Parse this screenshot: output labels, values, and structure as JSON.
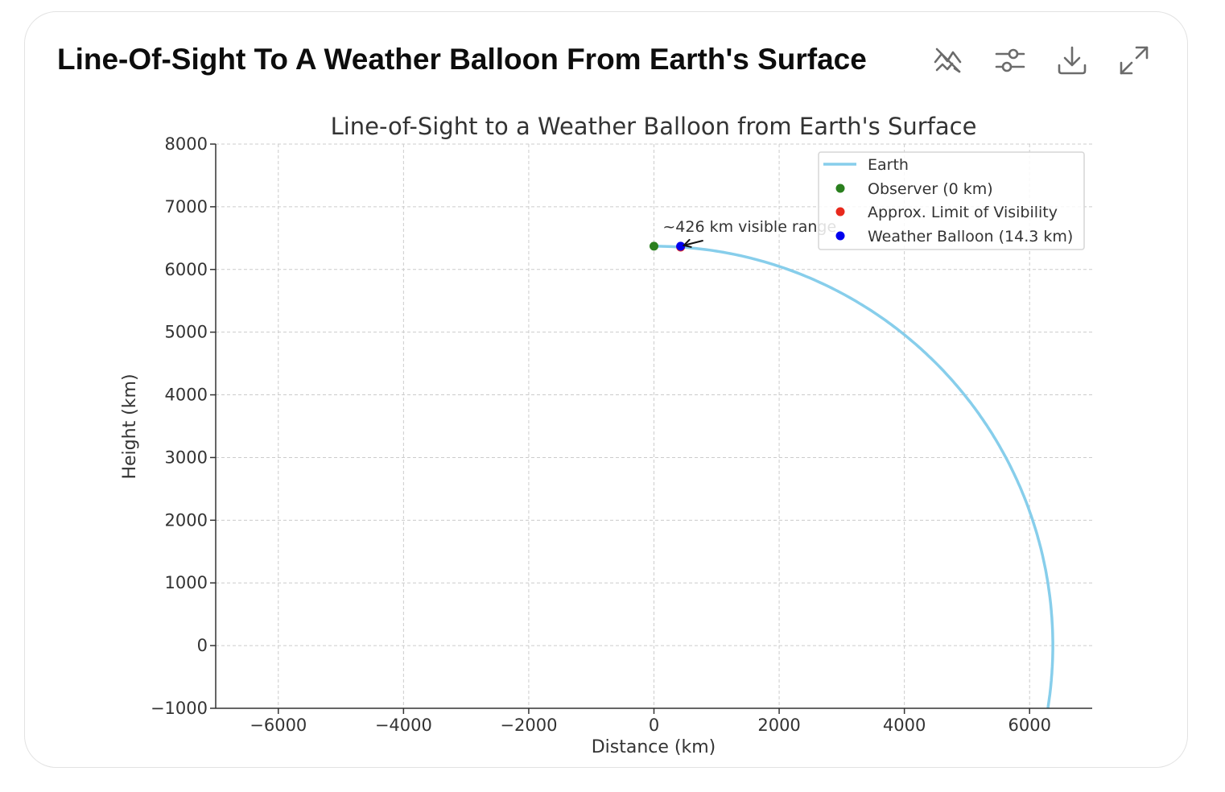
{
  "card": {
    "title": "Line-Of-Sight To A Weather Balloon From Earth's Surface"
  },
  "toolbar": {
    "buttons": [
      {
        "icon": "interactive-chart-off-icon",
        "label": "Switch to static chart"
      },
      {
        "icon": "sliders-icon",
        "label": "Customize chart"
      },
      {
        "icon": "download-icon",
        "label": "Download"
      },
      {
        "icon": "expand-icon",
        "label": "Expand chart"
      }
    ]
  },
  "colors": {
    "earth": "#87CEEB",
    "observer": "#2a7f1e",
    "limit": "#e8291c",
    "balloon": "#0000ee",
    "axis": "#333333",
    "grid": "#cccccc"
  },
  "chart_data": {
    "type": "line",
    "title": "Line-of-Sight to a Weather Balloon from Earth's Surface",
    "xlabel": "Distance (km)",
    "ylabel": "Height (km)",
    "xlim": [
      -7000,
      7000
    ],
    "ylim": [
      -1000,
      8000
    ],
    "xticks": [
      -6000,
      -4000,
      -2000,
      0,
      2000,
      4000,
      6000
    ],
    "yticks": [
      -1000,
      0,
      1000,
      2000,
      3000,
      4000,
      5000,
      6000,
      7000,
      8000
    ],
    "xtick_labels": [
      "−6000",
      "−4000",
      "−2000",
      "0",
      "2000",
      "4000",
      "6000"
    ],
    "ytick_labels": [
      "−1000",
      "0",
      "1000",
      "2000",
      "3000",
      "4000",
      "5000",
      "6000",
      "7000",
      "8000"
    ],
    "grid": true,
    "legend_position": "top-right",
    "earth_radius_km": 6371,
    "series": [
      {
        "name": "Earth",
        "kind": "line",
        "description": "circle arc of radius 6371 km centered at origin"
      },
      {
        "name": "Observer (0 km)",
        "kind": "point",
        "x": 0,
        "y": 6371
      },
      {
        "name": "Approx. Limit of Visibility",
        "kind": "point",
        "x": 426,
        "y": 6357
      },
      {
        "name": "Weather Balloon (14.3 km)",
        "kind": "point",
        "x": 426,
        "y": 6371
      }
    ],
    "annotation": {
      "text": "~426 km visible range",
      "point": {
        "x": 426,
        "y": 6371
      },
      "text_anchor": {
        "x": 140,
        "y": 6600
      }
    }
  }
}
